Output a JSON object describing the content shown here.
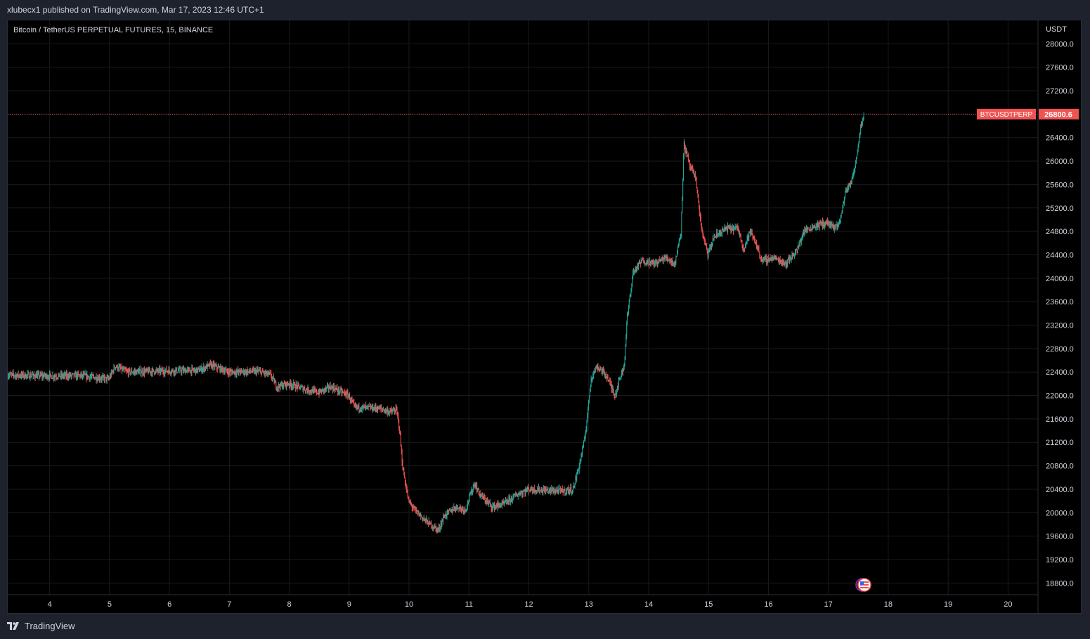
{
  "header": {
    "published": "xlubecx1 published on TradingView.com, Mar 17, 2023 12:46 UTC+1"
  },
  "symbol_title": "Bitcoin / TetherUS PERPETUAL FUTURES, 15, BINANCE",
  "price_axis": {
    "unit": "USDT",
    "ticks": [
      "28000.0",
      "27600.0",
      "27200.0",
      "26800.0",
      "26400.0",
      "26000.0",
      "25600.0",
      "25200.0",
      "24800.0",
      "24400.0",
      "24000.0",
      "23600.0",
      "23200.0",
      "22800.0",
      "22400.0",
      "22000.0",
      "21600.0",
      "21200.0",
      "20800.0",
      "20400.0",
      "20000.0",
      "19600.0",
      "19200.0",
      "18800.0"
    ]
  },
  "last_price": {
    "symbol": "BTCUSDTPERP",
    "value": "26800.6",
    "color": "#ef5350"
  },
  "footer": {
    "brand": "TradingView"
  },
  "colors": {
    "up": "#26a69a",
    "down": "#ef5350",
    "grid": "#1a1a1a",
    "background": "#000000"
  },
  "chart_data": {
    "type": "candlestick",
    "title": "Bitcoin / TetherUS PERPETUAL FUTURES, 15, BINANCE",
    "interval": "15",
    "ylim": [
      18600,
      28400
    ],
    "x_ticks": [
      "4",
      "5",
      "6",
      "7",
      "8",
      "9",
      "10",
      "11",
      "12",
      "13",
      "14",
      "15",
      "16",
      "17",
      "18",
      "19",
      "20"
    ],
    "xlim_days": [
      3.3,
      20.5
    ],
    "grid": true,
    "price_path": [
      [
        3.3,
        22350
      ],
      [
        4.0,
        22330
      ],
      [
        4.5,
        22340
      ],
      [
        5.0,
        22280
      ],
      [
        5.1,
        22500
      ],
      [
        5.3,
        22400
      ],
      [
        6.0,
        22420
      ],
      [
        6.5,
        22430
      ],
      [
        6.7,
        22520
      ],
      [
        7.0,
        22400
      ],
      [
        7.5,
        22410
      ],
      [
        7.7,
        22350
      ],
      [
        7.8,
        22150
      ],
      [
        8.0,
        22200
      ],
      [
        8.3,
        22100
      ],
      [
        8.5,
        22050
      ],
      [
        8.7,
        22150
      ],
      [
        9.0,
        22000
      ],
      [
        9.1,
        21800
      ],
      [
        9.5,
        21780
      ],
      [
        9.7,
        21720
      ],
      [
        9.8,
        21750
      ],
      [
        9.85,
        21450
      ],
      [
        9.9,
        20800
      ],
      [
        10.0,
        20200
      ],
      [
        10.1,
        20050
      ],
      [
        10.3,
        19850
      ],
      [
        10.5,
        19700
      ],
      [
        10.6,
        19950
      ],
      [
        10.8,
        20100
      ],
      [
        10.95,
        20050
      ],
      [
        11.1,
        20500
      ],
      [
        11.2,
        20300
      ],
      [
        11.4,
        20100
      ],
      [
        11.6,
        20150
      ],
      [
        11.8,
        20300
      ],
      [
        12.0,
        20400
      ],
      [
        12.3,
        20380
      ],
      [
        12.6,
        20370
      ],
      [
        12.75,
        20400
      ],
      [
        12.85,
        20800
      ],
      [
        12.95,
        21300
      ],
      [
        13.0,
        21800
      ],
      [
        13.05,
        22300
      ],
      [
        13.15,
        22500
      ],
      [
        13.3,
        22350
      ],
      [
        13.45,
        22000
      ],
      [
        13.5,
        22200
      ],
      [
        13.6,
        22500
      ],
      [
        13.65,
        23300
      ],
      [
        13.75,
        24100
      ],
      [
        13.9,
        24300
      ],
      [
        14.1,
        24250
      ],
      [
        14.3,
        24350
      ],
      [
        14.45,
        24250
      ],
      [
        14.55,
        24800
      ],
      [
        14.6,
        26300
      ],
      [
        14.7,
        25900
      ],
      [
        14.8,
        25700
      ],
      [
        14.85,
        25200
      ],
      [
        14.9,
        24800
      ],
      [
        15.0,
        24400
      ],
      [
        15.1,
        24700
      ],
      [
        15.3,
        24850
      ],
      [
        15.5,
        24850
      ],
      [
        15.6,
        24500
      ],
      [
        15.7,
        24800
      ],
      [
        15.8,
        24600
      ],
      [
        15.9,
        24300
      ],
      [
        16.1,
        24350
      ],
      [
        16.3,
        24250
      ],
      [
        16.5,
        24500
      ],
      [
        16.6,
        24800
      ],
      [
        16.8,
        24900
      ],
      [
        17.0,
        24950
      ],
      [
        17.1,
        24850
      ],
      [
        17.2,
        24950
      ],
      [
        17.3,
        25500
      ],
      [
        17.4,
        25650
      ],
      [
        17.45,
        25900
      ],
      [
        17.5,
        26200
      ],
      [
        17.55,
        26600
      ],
      [
        17.6,
        26800
      ]
    ]
  }
}
